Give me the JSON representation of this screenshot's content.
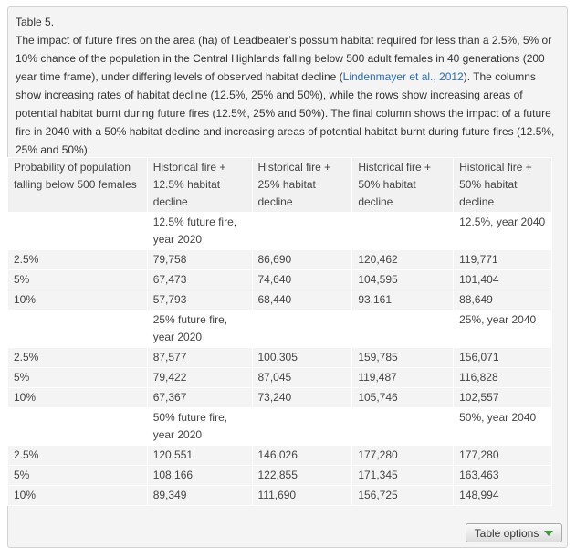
{
  "table": {
    "label": "Table 5.",
    "caption_before_link": "The impact of future fires on the area (ha) of Leadbeater’s possum habitat required for less than a 2.5%, 5% or 10% chance of the population in the Central Highlands falling below 500 adult females in 40 generations (200 year time frame), under differing levels of observed habitat decline (",
    "caption_link": "Lindenmayer et al., 2012",
    "caption_after_link": "). The columns show increasing rates of habitat decline (12.5%, 25% and 50%), while the rows show increasing areas of potential habitat burnt during future fires (12.5%, 25% and 50%). The final column shows the impact of a future fire in 2040 with a 50% habitat decline and increasing areas of potential habitat burnt during future fires (12.5%, 25% and 50%).",
    "headers": [
      "Probability of population falling below 500 females",
      "Historical fire + 12.5% habitat decline",
      "Historical fire + 25% habitat decline",
      "Historical fire + 50% habitat decline",
      "Historical fire + 50% habitat decline"
    ],
    "groups": [
      {
        "sub_left": "12.5% future fire, year 2020",
        "sub_right": "12.5%, year 2040",
        "rows": [
          [
            "2.5%",
            "79,758",
            "86,690",
            "120,462",
            "119,771"
          ],
          [
            "5%",
            "67,473",
            "74,640",
            "104,595",
            "101,404"
          ],
          [
            "10%",
            "57,793",
            "68,440",
            "93,161",
            "88,649"
          ]
        ]
      },
      {
        "sub_left": "25% future fire, year 2020",
        "sub_right": "25%, year 2040",
        "rows": [
          [
            "2.5%",
            "87,577",
            "100,305",
            "159,785",
            "156,071"
          ],
          [
            "5%",
            "79,422",
            "87,045",
            "119,487",
            "116,828"
          ],
          [
            "10%",
            "67,367",
            "73,240",
            "105,746",
            "102,557"
          ]
        ]
      },
      {
        "sub_left": "50% future fire, year 2020",
        "sub_right": "50%, year 2040",
        "rows": [
          [
            "2.5%",
            "120,551",
            "146,026",
            "177,280",
            "177,280"
          ],
          [
            "5%",
            "108,166",
            "122,855",
            "171,345",
            "163,463"
          ],
          [
            "10%",
            "89,349",
            "111,690",
            "156,725",
            "148,994"
          ]
        ]
      }
    ],
    "options_label": "Table options"
  }
}
